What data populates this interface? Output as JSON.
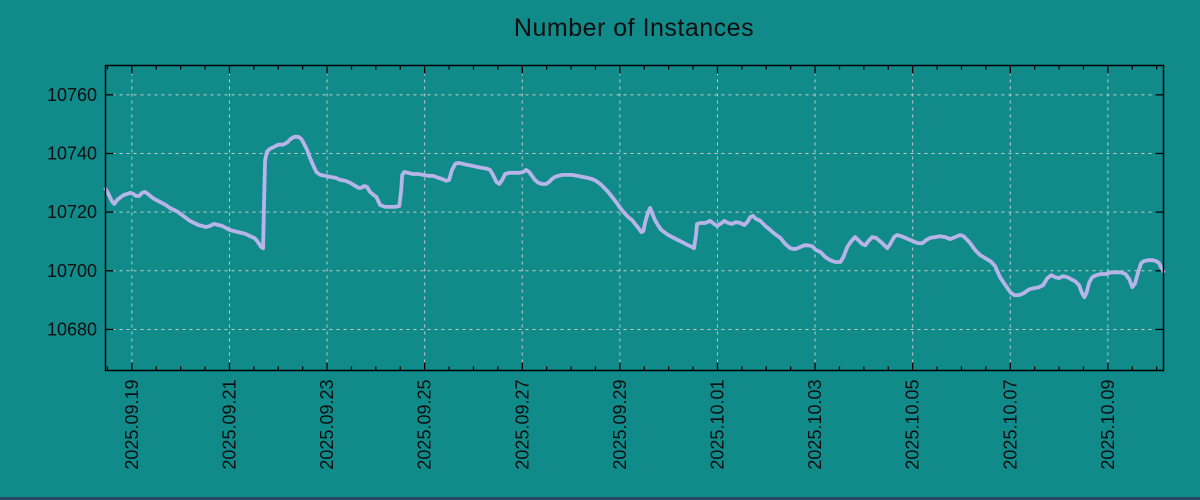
{
  "title": "Number of Instances",
  "colors": {
    "background": "#118a8a",
    "line": "#b6b4e8",
    "grid": "#c9c9c9",
    "axis": "#000000",
    "text": "#0e0e0e",
    "bottom_strip": "#274863"
  },
  "chart_data": {
    "type": "line",
    "title": "Number of Instances",
    "xlabel": "",
    "ylabel": "",
    "grid": true,
    "legend": "none",
    "y_ticks": [
      10680,
      10700,
      10720,
      10740,
      10760
    ],
    "y_range": [
      10666,
      10770
    ],
    "x_tick_labels": [
      "2025.09.19",
      "2025.09.21",
      "2025.09.23",
      "2025.09.25",
      "2025.09.27",
      "2025.09.29",
      "2025.10.01",
      "2025.10.03",
      "2025.10.05",
      "2025.10.07",
      "2025.10.09"
    ],
    "x_tick_days": [
      1,
      3,
      5,
      7,
      9,
      11,
      13,
      15,
      17,
      19,
      21
    ],
    "x_range_days": [
      0.46,
      22.14
    ],
    "x_minor_step_days": 0.5,
    "x_epoch": "days since 2025-09-18 00:00",
    "series": [
      {
        "name": "instances",
        "color": "#b6b4e8",
        "points": [
          [
            0.46,
            10727.9
          ],
          [
            0.51,
            10726.6
          ],
          [
            0.56,
            10724.8
          ],
          [
            0.6,
            10723.5
          ],
          [
            0.64,
            10722.8
          ],
          [
            0.7,
            10724.2
          ],
          [
            0.78,
            10725.2
          ],
          [
            0.84,
            10725.9
          ],
          [
            0.9,
            10726.2
          ],
          [
            0.97,
            10726.6
          ],
          [
            1.03,
            10726.2
          ],
          [
            1.09,
            10725.5
          ],
          [
            1.15,
            10725.5
          ],
          [
            1.21,
            10726.6
          ],
          [
            1.27,
            10726.9
          ],
          [
            1.33,
            10726.2
          ],
          [
            1.4,
            10725.2
          ],
          [
            1.46,
            10724.5
          ],
          [
            1.54,
            10723.8
          ],
          [
            1.62,
            10723.1
          ],
          [
            1.7,
            10722.4
          ],
          [
            1.78,
            10721.4
          ],
          [
            1.87,
            10720.7
          ],
          [
            1.95,
            10720.0
          ],
          [
            2.03,
            10719.0
          ],
          [
            2.11,
            10718.0
          ],
          [
            2.19,
            10717.0
          ],
          [
            2.28,
            10716.3
          ],
          [
            2.36,
            10715.6
          ],
          [
            2.44,
            10715.3
          ],
          [
            2.52,
            10714.9
          ],
          [
            2.6,
            10715.3
          ],
          [
            2.69,
            10716.0
          ],
          [
            2.77,
            10715.6
          ],
          [
            2.85,
            10715.3
          ],
          [
            2.93,
            10714.6
          ],
          [
            3.01,
            10713.9
          ],
          [
            3.1,
            10713.5
          ],
          [
            3.18,
            10713.2
          ],
          [
            3.26,
            10712.9
          ],
          [
            3.34,
            10712.5
          ],
          [
            3.42,
            10711.8
          ],
          [
            3.51,
            10711.2
          ],
          [
            3.57,
            10710.1
          ],
          [
            3.61,
            10709.1
          ],
          [
            3.65,
            10708.1
          ],
          [
            3.69,
            10707.7
          ],
          [
            3.71,
            10724.2
          ],
          [
            3.73,
            10737.8
          ],
          [
            3.77,
            10740.6
          ],
          [
            3.83,
            10741.6
          ],
          [
            3.92,
            10742.3
          ],
          [
            4.0,
            10743.0
          ],
          [
            4.1,
            10743.0
          ],
          [
            4.18,
            10743.7
          ],
          [
            4.26,
            10745.0
          ],
          [
            4.33,
            10745.7
          ],
          [
            4.41,
            10745.7
          ],
          [
            4.47,
            10745.0
          ],
          [
            4.53,
            10743.3
          ],
          [
            4.59,
            10741.3
          ],
          [
            4.65,
            10738.5
          ],
          [
            4.72,
            10735.8
          ],
          [
            4.78,
            10733.7
          ],
          [
            4.86,
            10732.7
          ],
          [
            4.96,
            10732.4
          ],
          [
            5.06,
            10732.0
          ],
          [
            5.17,
            10731.7
          ],
          [
            5.27,
            10731.0
          ],
          [
            5.37,
            10730.7
          ],
          [
            5.47,
            10730.0
          ],
          [
            5.58,
            10728.9
          ],
          [
            5.64,
            10728.3
          ],
          [
            5.7,
            10728.3
          ],
          [
            5.76,
            10728.9
          ],
          [
            5.82,
            10728.6
          ],
          [
            5.88,
            10726.9
          ],
          [
            5.95,
            10725.9
          ],
          [
            6.01,
            10725.2
          ],
          [
            6.09,
            10722.4
          ],
          [
            6.19,
            10721.8
          ],
          [
            6.29,
            10721.8
          ],
          [
            6.4,
            10721.8
          ],
          [
            6.48,
            10722.1
          ],
          [
            6.52,
            10727.6
          ],
          [
            6.54,
            10732.7
          ],
          [
            6.58,
            10733.7
          ],
          [
            6.66,
            10733.4
          ],
          [
            6.76,
            10733.0
          ],
          [
            6.87,
            10733.0
          ],
          [
            6.97,
            10732.7
          ],
          [
            7.07,
            10732.4
          ],
          [
            7.17,
            10732.4
          ],
          [
            7.28,
            10731.7
          ],
          [
            7.36,
            10731.3
          ],
          [
            7.44,
            10730.7
          ],
          [
            7.5,
            10731.0
          ],
          [
            7.56,
            10734.4
          ],
          [
            7.63,
            10736.5
          ],
          [
            7.69,
            10736.8
          ],
          [
            7.77,
            10736.5
          ],
          [
            7.87,
            10736.1
          ],
          [
            7.97,
            10735.8
          ],
          [
            8.08,
            10735.4
          ],
          [
            8.18,
            10735.1
          ],
          [
            8.28,
            10734.8
          ],
          [
            8.34,
            10734.4
          ],
          [
            8.4,
            10732.7
          ],
          [
            8.47,
            10730.3
          ],
          [
            8.53,
            10729.6
          ],
          [
            8.59,
            10731.0
          ],
          [
            8.65,
            10733.0
          ],
          [
            8.73,
            10733.4
          ],
          [
            8.83,
            10733.4
          ],
          [
            8.94,
            10733.4
          ],
          [
            9.02,
            10733.7
          ],
          [
            9.08,
            10734.4
          ],
          [
            9.14,
            10733.7
          ],
          [
            9.2,
            10732.4
          ],
          [
            9.26,
            10731.0
          ],
          [
            9.33,
            10730.0
          ],
          [
            9.41,
            10729.6
          ],
          [
            9.49,
            10729.6
          ],
          [
            9.55,
            10730.3
          ],
          [
            9.61,
            10731.3
          ],
          [
            9.67,
            10732.0
          ],
          [
            9.74,
            10732.4
          ],
          [
            9.82,
            10732.7
          ],
          [
            9.92,
            10732.7
          ],
          [
            10.02,
            10732.7
          ],
          [
            10.12,
            10732.4
          ],
          [
            10.23,
            10732.0
          ],
          [
            10.33,
            10731.7
          ],
          [
            10.43,
            10731.3
          ],
          [
            10.51,
            10730.7
          ],
          [
            10.6,
            10729.6
          ],
          [
            10.68,
            10728.3
          ],
          [
            10.76,
            10726.9
          ],
          [
            10.84,
            10725.2
          ],
          [
            10.92,
            10723.5
          ],
          [
            11.01,
            10721.4
          ],
          [
            11.09,
            10719.7
          ],
          [
            11.17,
            10718.3
          ],
          [
            11.25,
            10717.3
          ],
          [
            11.31,
            10716.0
          ],
          [
            11.38,
            10714.6
          ],
          [
            11.44,
            10713.2
          ],
          [
            11.48,
            10713.5
          ],
          [
            11.52,
            10716.6
          ],
          [
            11.58,
            10720.0
          ],
          [
            11.62,
            10721.4
          ],
          [
            11.66,
            10719.7
          ],
          [
            11.72,
            10717.3
          ],
          [
            11.79,
            10715.3
          ],
          [
            11.85,
            10713.9
          ],
          [
            11.91,
            10713.2
          ],
          [
            11.99,
            10712.2
          ],
          [
            12.07,
            10711.5
          ],
          [
            12.15,
            10710.8
          ],
          [
            12.24,
            10710.1
          ],
          [
            12.32,
            10709.4
          ],
          [
            12.4,
            10708.7
          ],
          [
            12.48,
            10708.1
          ],
          [
            12.52,
            10707.7
          ],
          [
            12.56,
            10712.2
          ],
          [
            12.58,
            10716.0
          ],
          [
            12.65,
            10716.3
          ],
          [
            12.75,
            10716.3
          ],
          [
            12.85,
            10717.0
          ],
          [
            12.93,
            10716.0
          ],
          [
            12.99,
            10715.3
          ],
          [
            13.06,
            10716.0
          ],
          [
            13.14,
            10717.0
          ],
          [
            13.22,
            10716.3
          ],
          [
            13.3,
            10716.0
          ],
          [
            13.38,
            10716.6
          ],
          [
            13.47,
            10716.3
          ],
          [
            13.55,
            10715.6
          ],
          [
            13.61,
            10716.6
          ],
          [
            13.67,
            10718.3
          ],
          [
            13.73,
            10718.7
          ],
          [
            13.79,
            10717.7
          ],
          [
            13.88,
            10717.0
          ],
          [
            13.98,
            10715.3
          ],
          [
            14.08,
            10713.9
          ],
          [
            14.18,
            10712.5
          ],
          [
            14.29,
            10711.2
          ],
          [
            14.39,
            10709.1
          ],
          [
            14.49,
            10707.7
          ],
          [
            14.59,
            10707.4
          ],
          [
            14.7,
            10708.1
          ],
          [
            14.78,
            10708.7
          ],
          [
            14.86,
            10708.7
          ],
          [
            14.94,
            10708.4
          ],
          [
            15.02,
            10707.1
          ],
          [
            15.11,
            10706.4
          ],
          [
            15.21,
            10704.7
          ],
          [
            15.31,
            10703.6
          ],
          [
            15.41,
            10703.0
          ],
          [
            15.52,
            10703.0
          ],
          [
            15.58,
            10704.7
          ],
          [
            15.66,
            10708.1
          ],
          [
            15.74,
            10710.1
          ],
          [
            15.82,
            10711.5
          ],
          [
            15.88,
            10710.5
          ],
          [
            15.97,
            10709.1
          ],
          [
            16.03,
            10708.7
          ],
          [
            16.09,
            10710.1
          ],
          [
            16.17,
            10711.5
          ],
          [
            16.25,
            10711.2
          ],
          [
            16.33,
            10710.1
          ],
          [
            16.42,
            10708.7
          ],
          [
            16.48,
            10707.7
          ],
          [
            16.54,
            10709.1
          ],
          [
            16.62,
            10711.5
          ],
          [
            16.68,
            10712.2
          ],
          [
            16.77,
            10711.8
          ],
          [
            16.85,
            10711.2
          ],
          [
            16.95,
            10710.5
          ],
          [
            17.05,
            10709.8
          ],
          [
            17.11,
            10709.4
          ],
          [
            17.2,
            10709.4
          ],
          [
            17.28,
            10710.5
          ],
          [
            17.36,
            10711.2
          ],
          [
            17.46,
            10711.5
          ],
          [
            17.56,
            10711.8
          ],
          [
            17.67,
            10711.5
          ],
          [
            17.77,
            10710.8
          ],
          [
            17.87,
            10711.5
          ],
          [
            17.97,
            10712.2
          ],
          [
            18.04,
            10711.8
          ],
          [
            18.12,
            10710.5
          ],
          [
            18.18,
            10709.4
          ],
          [
            18.28,
            10707.1
          ],
          [
            18.38,
            10705.4
          ],
          [
            18.49,
            10704.3
          ],
          [
            18.59,
            10703.3
          ],
          [
            18.69,
            10701.6
          ],
          [
            18.79,
            10697.8
          ],
          [
            18.9,
            10695.1
          ],
          [
            19.0,
            10692.7
          ],
          [
            19.08,
            10691.7
          ],
          [
            19.18,
            10691.7
          ],
          [
            19.28,
            10692.4
          ],
          [
            19.39,
            10693.7
          ],
          [
            19.49,
            10694.1
          ],
          [
            19.59,
            10694.4
          ],
          [
            19.67,
            10695.1
          ],
          [
            19.76,
            10697.5
          ],
          [
            19.84,
            10698.5
          ],
          [
            19.92,
            10697.8
          ],
          [
            20.0,
            10697.5
          ],
          [
            20.08,
            10698.2
          ],
          [
            20.17,
            10697.8
          ],
          [
            20.25,
            10697.1
          ],
          [
            20.33,
            10696.4
          ],
          [
            20.41,
            10695.1
          ],
          [
            20.47,
            10692.4
          ],
          [
            20.52,
            10691.0
          ],
          [
            20.56,
            10692.4
          ],
          [
            20.62,
            10696.1
          ],
          [
            20.68,
            10697.8
          ],
          [
            20.76,
            10698.5
          ],
          [
            20.86,
            10698.9
          ],
          [
            20.97,
            10698.9
          ],
          [
            21.07,
            10699.5
          ],
          [
            21.17,
            10699.5
          ],
          [
            21.27,
            10699.5
          ],
          [
            21.36,
            10698.9
          ],
          [
            21.44,
            10697.1
          ],
          [
            21.5,
            10694.4
          ],
          [
            21.56,
            10695.8
          ],
          [
            21.62,
            10699.5
          ],
          [
            21.68,
            10702.6
          ],
          [
            21.74,
            10703.3
          ],
          [
            21.83,
            10703.6
          ],
          [
            21.91,
            10703.6
          ],
          [
            21.99,
            10703.3
          ],
          [
            22.05,
            10702.6
          ],
          [
            22.09,
            10701.2
          ],
          [
            22.14,
            10699.8
          ]
        ]
      }
    ]
  }
}
